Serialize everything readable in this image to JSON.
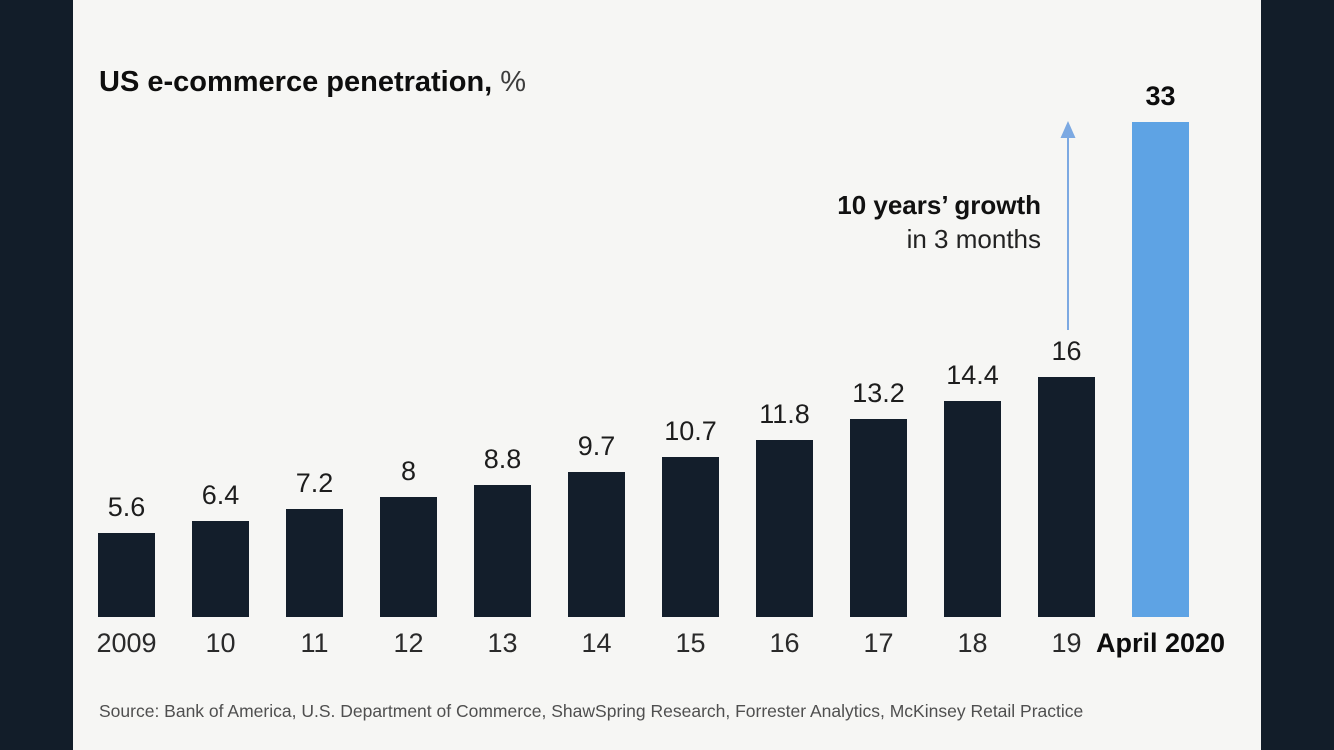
{
  "slide": {
    "title": {
      "main": "US e-commerce penetration,",
      "unit": "%"
    },
    "annotation": {
      "line1": "10 years’ growth",
      "line2": "in 3 months"
    },
    "source": "Source: Bank of America, U.S. Department of Commerce, ShawSpring Research, Forrester Analytics, McKinsey Retail Practice"
  },
  "chart_data": {
    "type": "bar",
    "title": "US e-commerce penetration, %",
    "categories": [
      "2009",
      "10",
      "11",
      "12",
      "13",
      "14",
      "15",
      "16",
      "17",
      "18",
      "19",
      "April 2020"
    ],
    "values": [
      5.6,
      6.4,
      7.2,
      8,
      8.8,
      9.7,
      10.7,
      11.8,
      13.2,
      14.4,
      16,
      33
    ],
    "value_labels": [
      "5.6",
      "6.4",
      "7.2",
      "8",
      "8.8",
      "9.7",
      "10.7",
      "11.8",
      "13.2",
      "14.4",
      "16",
      "33"
    ],
    "highlight_index": 11,
    "highlight_category": "April 2020",
    "annotation": {
      "text_bold": "10 years’ growth",
      "text_regular": "in 3 months",
      "arrow_direction": "up"
    },
    "xlabel": "",
    "ylabel": "US e-commerce penetration, %",
    "ylim": [
      0,
      35
    ],
    "grid": false,
    "legend": false
  },
  "colors": {
    "background": "#f6f6f4",
    "letterbox": "#121d29",
    "bar": "#131e2b",
    "highlight_bar": "#5ea3e4",
    "arrow": "#7ca9e2",
    "title_text": "#0e0e0e",
    "source_text": "#4f4f4f"
  },
  "icons": {
    "growth_arrow": "arrow-up"
  }
}
